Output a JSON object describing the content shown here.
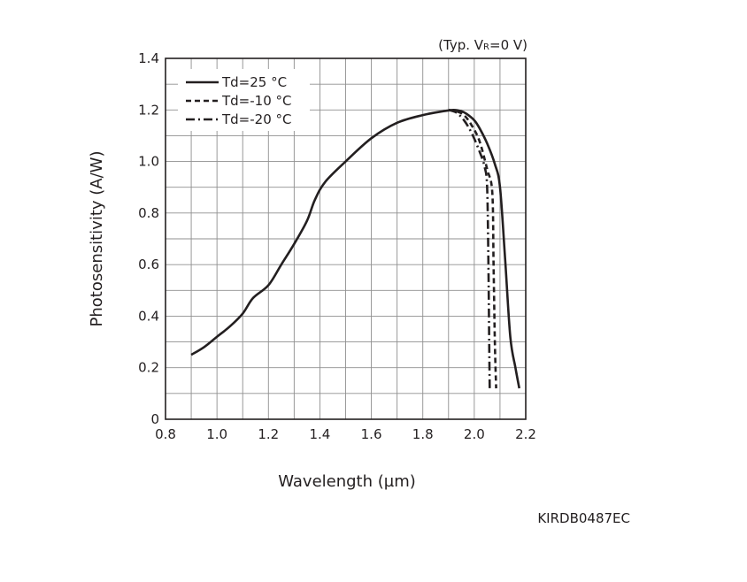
{
  "chart_data": {
    "type": "line",
    "title": "",
    "condition": {
      "prefix": "(Typ. V",
      "subscript": "R",
      "suffix": "=0 V)"
    },
    "xlabel": "Wavelength (µm)",
    "ylabel": "Photosensitivity (A/W)",
    "xlim": [
      0.8,
      2.2
    ],
    "ylim": [
      0,
      1.4
    ],
    "grid": true,
    "x_minor_step": 0.1,
    "y_minor_step": 0.1,
    "x_tick_labels": [
      {
        "value": 0.8,
        "label": "0.8"
      },
      {
        "value": 1.0,
        "label": "1.0"
      },
      {
        "value": 1.2,
        "label": "1.2"
      },
      {
        "value": 1.4,
        "label": "1.4"
      },
      {
        "value": 1.6,
        "label": "1.6"
      },
      {
        "value": 1.8,
        "label": "1.8"
      },
      {
        "value": 2.0,
        "label": "2.0"
      },
      {
        "value": 2.2,
        "label": "2.2"
      }
    ],
    "y_tick_labels": [
      {
        "value": 0,
        "label": "0"
      },
      {
        "value": 0.2,
        "label": "0.2"
      },
      {
        "value": 0.4,
        "label": "0.4"
      },
      {
        "value": 0.6,
        "label": "0.6"
      },
      {
        "value": 0.8,
        "label": "0.8"
      },
      {
        "value": 1.0,
        "label": "1.0"
      },
      {
        "value": 1.2,
        "label": "1.2"
      },
      {
        "value": 1.4,
        "label": "1.4"
      }
    ],
    "legend_position": "top-left",
    "series": [
      {
        "name": "Td=25 °C",
        "style": "solid",
        "x": [
          0.9,
          0.95,
          1.0,
          1.05,
          1.1,
          1.14,
          1.2,
          1.25,
          1.3,
          1.35,
          1.38,
          1.42,
          1.5,
          1.6,
          1.7,
          1.8,
          1.88,
          1.92,
          1.95,
          1.97,
          2.0,
          2.02,
          2.05,
          2.08,
          2.1,
          2.12,
          2.14,
          2.16,
          2.175
        ],
        "y": [
          0.25,
          0.28,
          0.32,
          0.36,
          0.41,
          0.47,
          0.52,
          0.6,
          0.68,
          0.77,
          0.85,
          0.92,
          1.0,
          1.09,
          1.15,
          1.18,
          1.195,
          1.2,
          1.195,
          1.185,
          1.16,
          1.13,
          1.07,
          0.99,
          0.9,
          0.62,
          0.32,
          0.2,
          0.12
        ]
      },
      {
        "name": "Td=-10 °C",
        "style": "dashed",
        "x": [
          1.9,
          1.93,
          1.96,
          1.99,
          2.02,
          2.05,
          2.07,
          2.075,
          2.08,
          2.085
        ],
        "y": [
          1.2,
          1.195,
          1.18,
          1.14,
          1.08,
          0.97,
          0.88,
          0.6,
          0.3,
          0.12
        ]
      },
      {
        "name": "Td=-20 °C",
        "style": "dashdot",
        "x": [
          1.9,
          1.93,
          1.96,
          1.99,
          2.02,
          2.04,
          2.05,
          2.055,
          2.058,
          2.06
        ],
        "y": [
          1.2,
          1.19,
          1.16,
          1.11,
          1.04,
          0.98,
          0.9,
          0.6,
          0.3,
          0.12
        ]
      }
    ]
  },
  "figure_code": "KIRDB0487EC"
}
